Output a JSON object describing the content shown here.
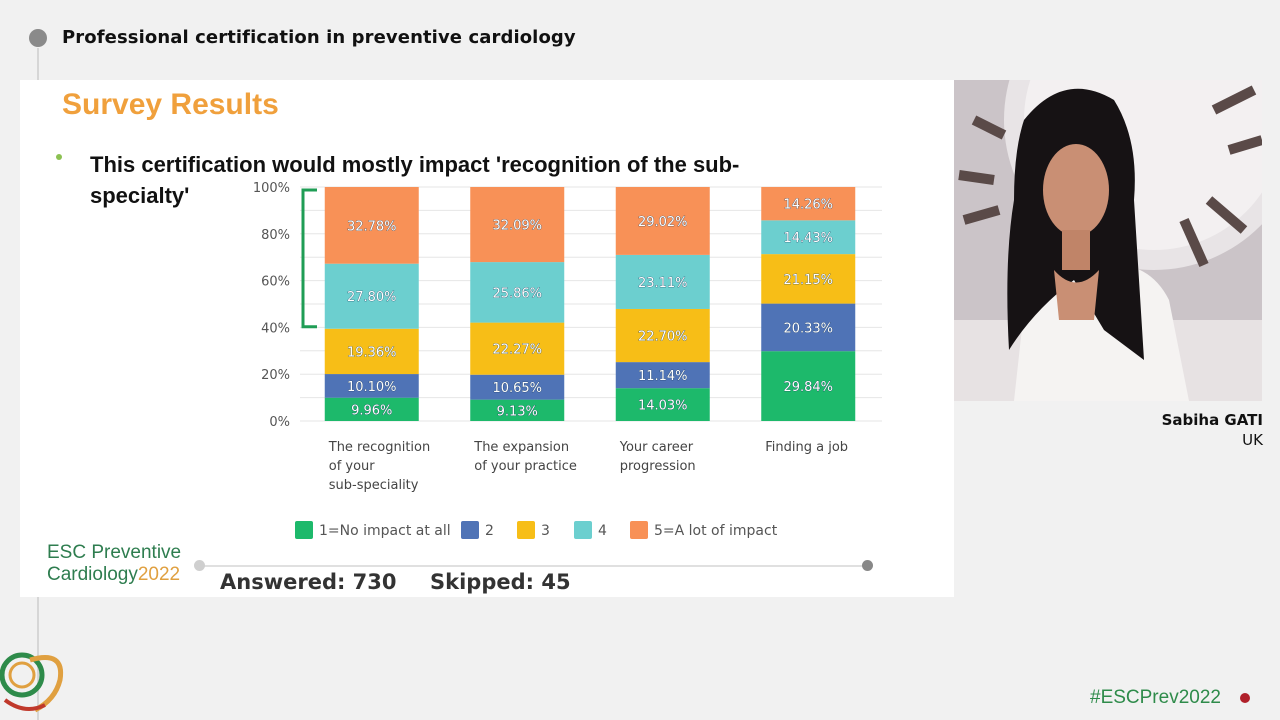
{
  "session": {
    "title": "Professional certification in preventive cardiology"
  },
  "slide": {
    "title": "Survey Results",
    "bullet": "This certification would mostly impact 'recognition of the sub-specialty'"
  },
  "chart_data": {
    "type": "bar",
    "stacked": true,
    "ylim": [
      0,
      100
    ],
    "y_ticks": [
      "0%",
      "20%",
      "40%",
      "60%",
      "80%",
      "100%"
    ],
    "categories": [
      [
        "The recognition",
        "of your",
        "sub-speciality"
      ],
      [
        "The expansion",
        "of your practice"
      ],
      [
        "Your career",
        "progression"
      ],
      [
        "Finding a job"
      ]
    ],
    "series": [
      {
        "name": "1=No impact at all",
        "color": "#1db96b",
        "values": [
          9.96,
          9.13,
          14.03,
          29.84
        ],
        "labels": [
          "9.96%",
          "9.13%",
          "14.03%",
          "29.84%"
        ]
      },
      {
        "name": "2",
        "color": "#4f73b6",
        "values": [
          10.1,
          10.65,
          11.14,
          20.33
        ],
        "labels": [
          "10.10%",
          "10.65%",
          "11.14%",
          "20.33%"
        ]
      },
      {
        "name": "3",
        "color": "#f7be17",
        "values": [
          19.36,
          22.27,
          22.7,
          21.15
        ],
        "labels": [
          "19.36%",
          "22.27%",
          "22.70%",
          "21.15%"
        ]
      },
      {
        "name": "4",
        "color": "#6ccfcf",
        "values": [
          27.8,
          25.86,
          23.11,
          14.43
        ],
        "labels": [
          "27.80%",
          "25.86%",
          "23.11%",
          "14.43%"
        ]
      },
      {
        "name": "5=A lot of impact",
        "color": "#f89157",
        "values": [
          32.78,
          32.09,
          29.02,
          14.26
        ],
        "labels": [
          "32.78%",
          "32.09%",
          "29.02%",
          "14.26%"
        ]
      }
    ],
    "bracket_color": "#1f9d55"
  },
  "footer": {
    "answered": "Answered: 730",
    "skipped": "Skipped: 45",
    "logo_line1": "ESC Preventive",
    "logo_line2": "Cardiology",
    "logo_year": "2022"
  },
  "speaker": {
    "name": "Sabiha GATI",
    "country": "UK"
  },
  "event": {
    "hashtag": "#ESCPrev2022"
  }
}
